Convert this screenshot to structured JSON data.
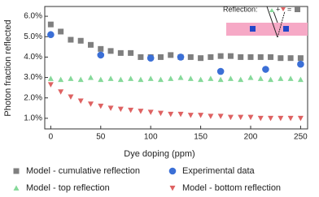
{
  "chart_data": {
    "type": "scatter",
    "xlabel": "Dye doping (ppm)",
    "ylabel": "Photon fraction reflected",
    "xlim": [
      -6,
      257
    ],
    "xticks": [
      0,
      50,
      100,
      150,
      200,
      250
    ],
    "ylim": [
      0.48,
      6.48
    ],
    "yticks": [
      {
        "value": 1,
        "label": "1.0%"
      },
      {
        "value": 2,
        "label": "2.0%"
      },
      {
        "value": 3,
        "label": "3.0%"
      },
      {
        "value": 4,
        "label": "4.0%"
      },
      {
        "value": 5,
        "label": "5.0%"
      },
      {
        "value": 6,
        "label": "6.0%"
      }
    ],
    "inset": {
      "label": "Reflection:",
      "plus": "+",
      "equals": "="
    },
    "series": [
      {
        "name": "Model - cumulative reflection",
        "color": "#7f7f7f",
        "marker": "square",
        "x": [
          0,
          10,
          20,
          30,
          40,
          50,
          60,
          70,
          80,
          90,
          100,
          110,
          120,
          130,
          140,
          150,
          160,
          170,
          180,
          190,
          200,
          210,
          220,
          230,
          240,
          250
        ],
        "values": [
          5.6,
          5.25,
          4.85,
          4.8,
          4.6,
          4.4,
          4.3,
          4.2,
          4.2,
          4.0,
          4.0,
          4.0,
          4.1,
          4.0,
          4.0,
          3.95,
          4.0,
          4.05,
          4.05,
          4.0,
          4.0,
          4.0,
          4.0,
          3.95,
          3.95,
          3.95
        ]
      },
      {
        "name": "Experimental data",
        "color": "#3b6fd6",
        "marker": "circle",
        "x": [
          0,
          50,
          100,
          130,
          170,
          215,
          250
        ],
        "values": [
          5.1,
          4.1,
          3.95,
          4.0,
          3.3,
          3.4,
          3.65
        ]
      },
      {
        "name": "Model - top reflection",
        "color": "#86d99a",
        "marker": "triangle-up",
        "x": [
          0,
          10,
          20,
          30,
          40,
          50,
          60,
          70,
          80,
          90,
          100,
          110,
          120,
          130,
          140,
          150,
          160,
          170,
          180,
          190,
          200,
          210,
          220,
          230,
          240,
          250
        ],
        "values": [
          2.95,
          2.9,
          2.95,
          2.9,
          3.0,
          2.9,
          2.95,
          2.9,
          2.95,
          2.9,
          2.95,
          2.9,
          2.95,
          3.0,
          2.95,
          2.9,
          2.95,
          2.9,
          2.95,
          2.9,
          3.0,
          2.95,
          2.9,
          2.95,
          2.95,
          2.9
        ]
      },
      {
        "name": "Model - bottom reflection",
        "color": "#de6262",
        "marker": "triangle-down",
        "x": [
          0,
          10,
          20,
          30,
          40,
          50,
          60,
          70,
          80,
          90,
          100,
          110,
          120,
          130,
          140,
          150,
          160,
          170,
          180,
          190,
          200,
          210,
          220,
          230,
          240,
          250
        ],
        "values": [
          2.65,
          2.3,
          2.05,
          1.85,
          1.7,
          1.6,
          1.5,
          1.45,
          1.4,
          1.35,
          1.3,
          1.25,
          1.2,
          1.2,
          1.15,
          1.15,
          1.1,
          1.1,
          1.05,
          1.05,
          1.05,
          1.0,
          1.0,
          1.0,
          1.0,
          1.0
        ]
      }
    ]
  }
}
